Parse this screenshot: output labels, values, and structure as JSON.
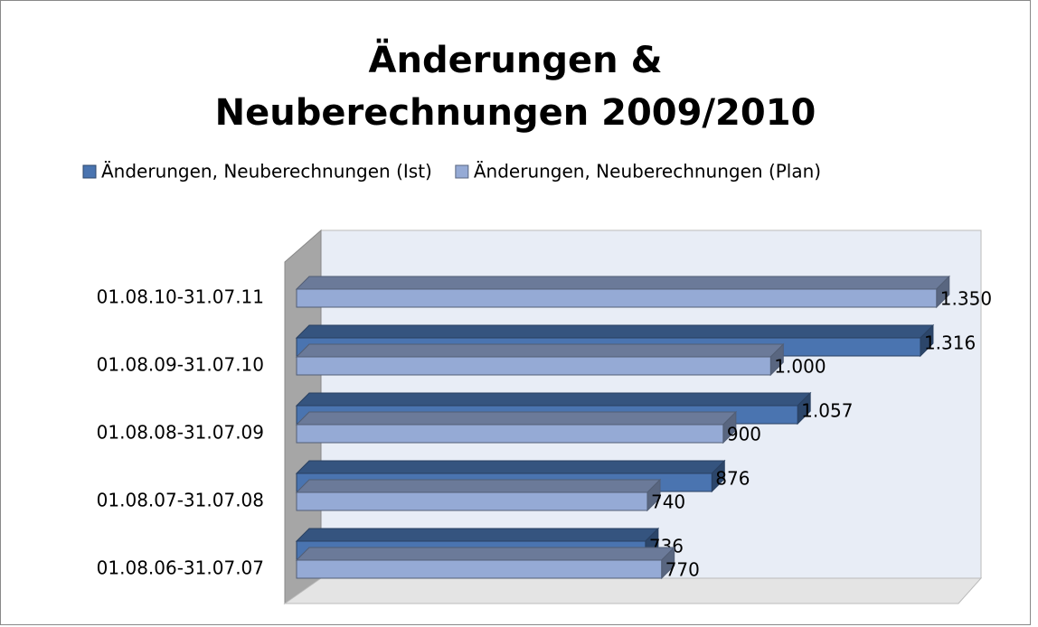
{
  "chart_data": {
    "type": "bar3d_horizontal",
    "title": "Änderungen & Neuberechnungen 2009/2010",
    "categories": [
      "01.08.06-31.07.07",
      "01.08.07-31.07.08",
      "01.08.08-31.07.09",
      "01.08.09-31.07.10",
      "01.08.10-31.07.11"
    ],
    "series": [
      {
        "name": "Änderungen, Neuberechnungen (Ist)",
        "color": "#4a74b0",
        "values": [
          736,
          876,
          1057,
          1316,
          null
        ],
        "value_labels": [
          "736",
          "876",
          "1.057",
          "1.316",
          null
        ]
      },
      {
        "name": "Änderungen, Neuberechnungen (Plan)",
        "color": "#95aad5",
        "values": [
          770,
          740,
          900,
          1000,
          1350
        ],
        "value_labels": [
          "770",
          "740",
          "900",
          "1.000",
          "1.350"
        ]
      }
    ],
    "xlim": [
      0,
      1400
    ],
    "legend": "top"
  }
}
